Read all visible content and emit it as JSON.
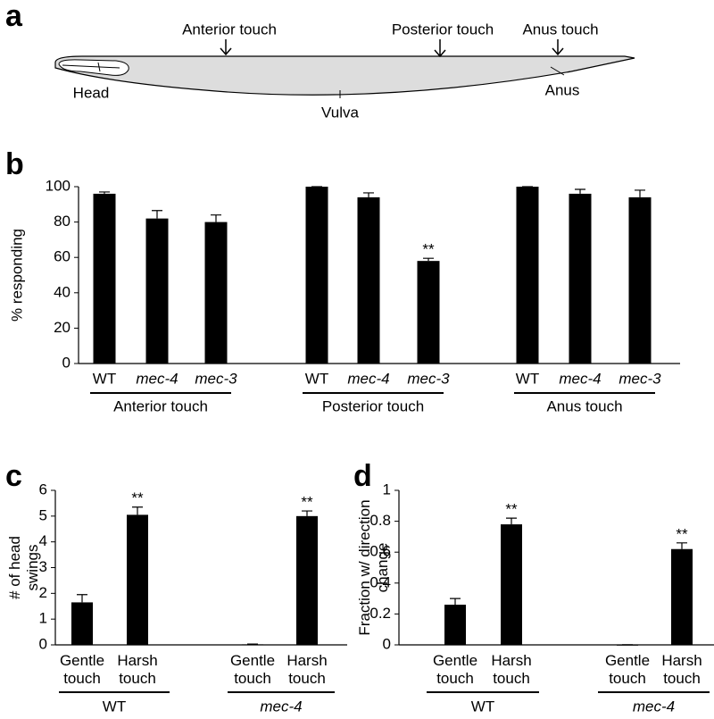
{
  "diagram": {
    "panel": "a",
    "touch_labels": [
      "Anterior touch",
      "Posterior touch",
      "Anus touch"
    ],
    "body_labels": [
      "Head",
      "Vulva",
      "Anus"
    ]
  },
  "chart_data": [
    {
      "type": "bar",
      "panel": "b",
      "ylabel": "% responding",
      "categories": [
        "WT",
        "mec-4",
        "mec-3",
        "WT",
        "mec-4",
        "mec-3",
        "WT",
        "mec-4",
        "mec-3"
      ],
      "values": [
        96,
        82,
        80,
        100,
        94,
        58,
        100,
        96,
        94
      ],
      "errors": [
        1,
        4.5,
        4,
        0,
        2.5,
        1.5,
        0,
        2.5,
        4
      ],
      "significance": [
        null,
        null,
        null,
        null,
        null,
        "**",
        null,
        null,
        null
      ],
      "groups": [
        "Anterior touch",
        "Posterior touch",
        "Anus touch"
      ],
      "color": "#000000",
      "ylim": [
        0,
        100
      ],
      "yticks": [
        0,
        20,
        40,
        60,
        80,
        100
      ]
    },
    {
      "type": "bar",
      "panel": "c",
      "ylabel": "# of head swings",
      "categories": [
        "Gentle touch",
        "Harsh touch",
        "Gentle touch",
        "Harsh touch"
      ],
      "values": [
        1.65,
        5.05,
        0.02,
        5.0
      ],
      "errors": [
        0.3,
        0.3,
        0.01,
        0.2
      ],
      "significance": [
        null,
        "**",
        null,
        "**"
      ],
      "groups": [
        "WT",
        "mec-4"
      ],
      "color": "#000000",
      "ylim": [
        0,
        6
      ],
      "yticks": [
        0,
        1,
        2,
        3,
        4,
        5,
        6
      ]
    },
    {
      "type": "bar",
      "panel": "d",
      "ylabel": "Fraction w/ direction change",
      "categories": [
        "Gentle touch",
        "Harsh touch",
        "Gentle touch",
        "Harsh touch"
      ],
      "values": [
        0.26,
        0.78,
        0,
        0.62
      ],
      "errors": [
        0.04,
        0.04,
        0.001,
        0.04
      ],
      "significance": [
        null,
        "**",
        null,
        "**"
      ],
      "groups": [
        "WT",
        "mec-4"
      ],
      "color": "#000000",
      "ylim": [
        0,
        1
      ],
      "yticks": [
        0,
        0.2,
        0.4,
        0.6,
        0.8,
        1
      ]
    }
  ]
}
